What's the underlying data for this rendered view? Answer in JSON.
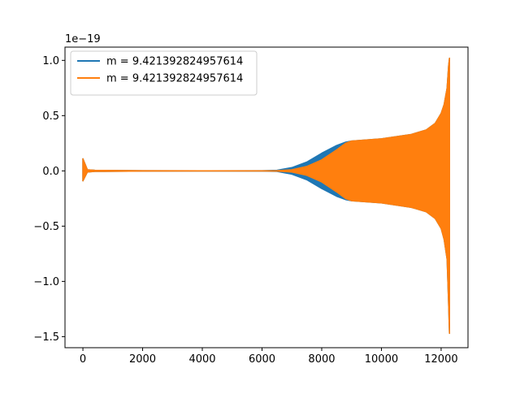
{
  "chart_data": {
    "type": "line",
    "title": "",
    "xlabel": "",
    "ylabel": "",
    "y_offset_label": "1e−19",
    "xlim": [
      -600,
      12900
    ],
    "ylim": [
      -1.6,
      1.12
    ],
    "xticks": [
      0,
      2000,
      4000,
      6000,
      8000,
      10000,
      12000
    ],
    "xtick_labels": [
      "0",
      "2000",
      "4000",
      "6000",
      "8000",
      "10000",
      "12000"
    ],
    "yticks": [
      -1.5,
      -1.0,
      -0.5,
      0.0,
      0.5,
      1.0
    ],
    "ytick_labels": [
      "−1.5",
      "−1.0",
      "−0.5",
      "0.0",
      "0.5",
      "1.0"
    ],
    "grid": false,
    "legend_position": "top-left",
    "series": [
      {
        "name": "m = 9.421392824957614",
        "color": "#1f77b4",
        "envelope": {
          "x": [
            0,
            150,
            400,
            2000,
            4000,
            6000,
            6500,
            7000,
            7500,
            8000,
            8500,
            8800,
            9000,
            10000,
            11000,
            11500,
            11800,
            12000,
            12100,
            12200,
            12250,
            12280
          ],
          "upper": [
            0.11,
            0.01,
            0.005,
            0.002,
            0.001,
            0.002,
            0.005,
            0.03,
            0.08,
            0.16,
            0.23,
            0.26,
            0.27,
            0.29,
            0.33,
            0.37,
            0.43,
            0.52,
            0.6,
            0.75,
            0.95,
            1.02
          ],
          "lower": [
            -0.09,
            -0.01,
            -0.005,
            -0.002,
            -0.001,
            -0.002,
            -0.005,
            -0.03,
            -0.08,
            -0.16,
            -0.23,
            -0.26,
            -0.27,
            -0.29,
            -0.33,
            -0.37,
            -0.43,
            -0.52,
            -0.62,
            -0.8,
            -1.2,
            -1.47
          ]
        }
      },
      {
        "name": "m = 9.421392824957614",
        "color": "#ff7f0e",
        "envelope": {
          "x": [
            0,
            150,
            400,
            2000,
            4000,
            6000,
            6500,
            7000,
            7500,
            8000,
            8500,
            8800,
            9000,
            10000,
            11000,
            11500,
            11800,
            12000,
            12100,
            12200,
            12250,
            12280
          ],
          "upper": [
            0.11,
            0.01,
            0.005,
            0.002,
            0.001,
            0.001,
            0.002,
            0.01,
            0.04,
            0.1,
            0.19,
            0.25,
            0.27,
            0.29,
            0.33,
            0.37,
            0.43,
            0.52,
            0.6,
            0.75,
            0.95,
            1.02
          ],
          "lower": [
            -0.09,
            -0.01,
            -0.005,
            -0.002,
            -0.001,
            -0.001,
            -0.002,
            -0.01,
            -0.04,
            -0.1,
            -0.19,
            -0.25,
            -0.27,
            -0.29,
            -0.33,
            -0.37,
            -0.43,
            -0.52,
            -0.62,
            -0.8,
            -1.2,
            -1.47
          ]
        }
      }
    ]
  }
}
